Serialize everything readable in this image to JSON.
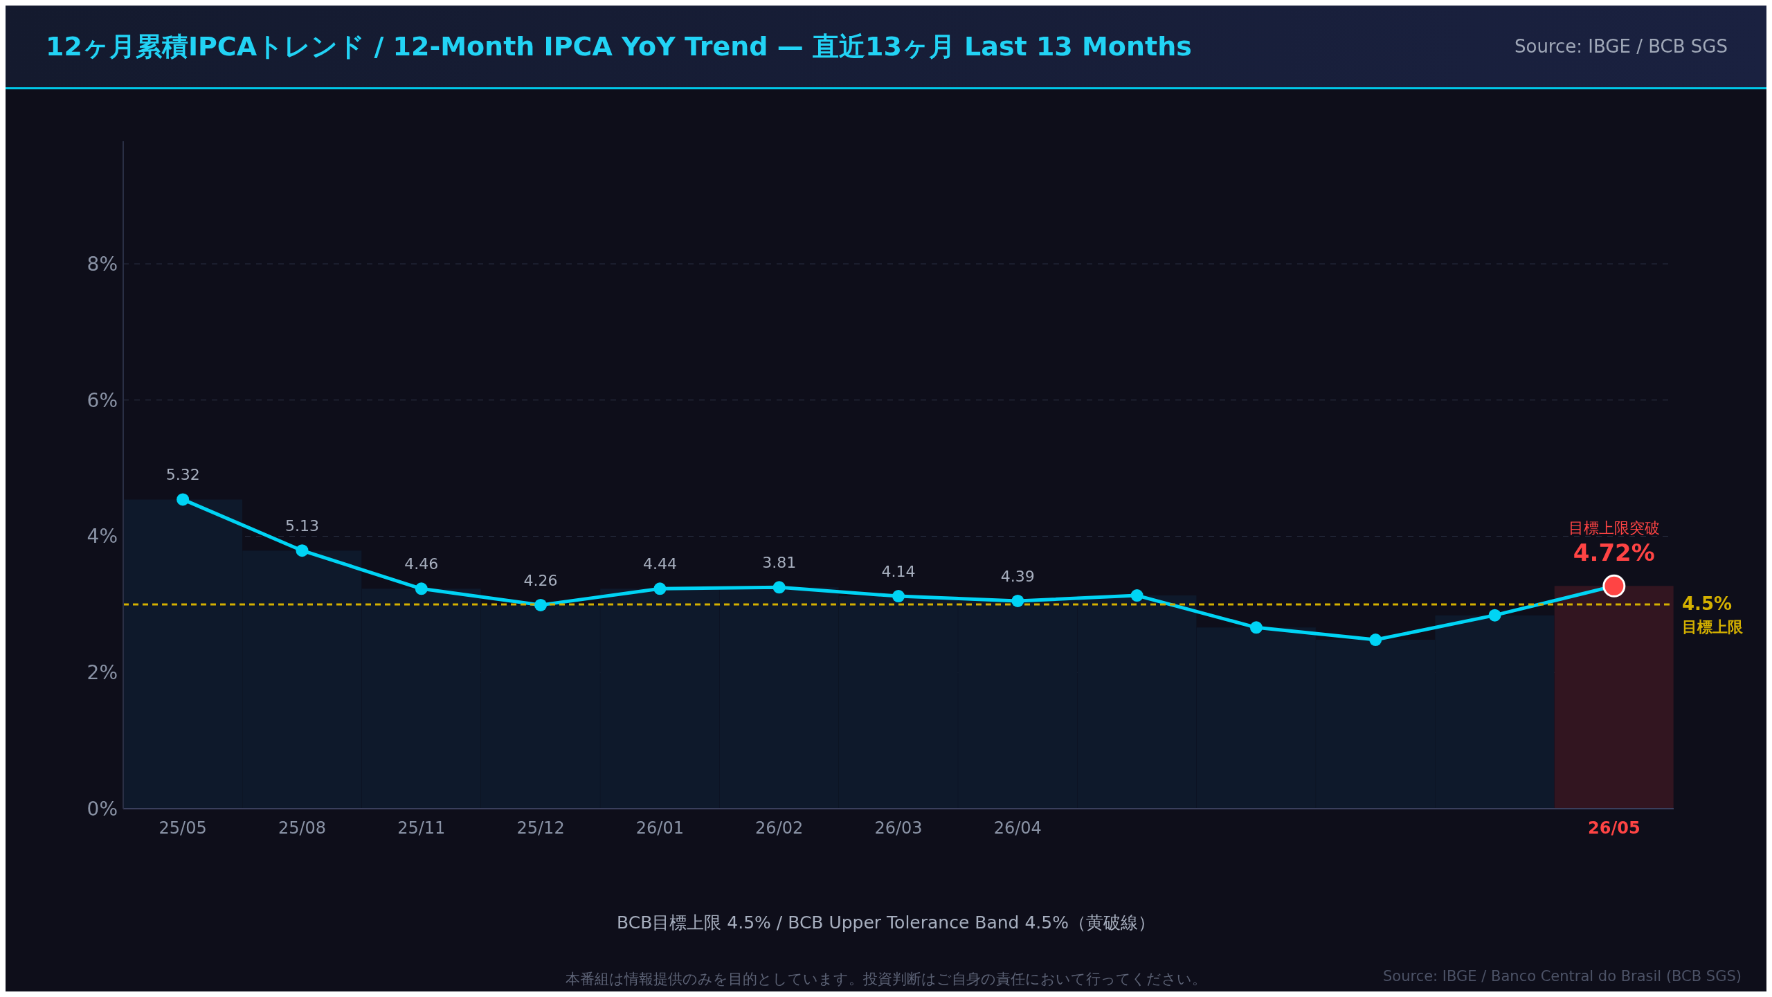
{
  "chart_data": {
    "type": "line",
    "title": "12ヶ月累積IPCAトレンド / 12-Month IPCA YoY Trend — 直近13ヶ月 Last 13 Months",
    "categories": [
      "25/05",
      "25/08",
      "25/11",
      "25/12",
      "26/01",
      "26/02",
      "26/03",
      "26/04",
      null,
      null,
      null,
      null,
      "26/05"
    ],
    "series": [
      {
        "type": "bar",
        "colors": [
          "#0e192b",
          "#0e192b",
          "#0e192b",
          "#0e192b",
          "#0e192b",
          "#0e192b",
          "#0e192b",
          "#0e192b",
          "#0e192b",
          "#0e192b",
          "#0e192b",
          "#0e192b",
          "#321520"
        ],
        "values": [
          4.54,
          3.79,
          3.23,
          2.99,
          3.23,
          3.25,
          3.12,
          3.05,
          3.13,
          2.66,
          2.48,
          2.84,
          3.27
        ]
      },
      {
        "color": "#00d4f5",
        "colors": [
          "#00d4f5",
          "#00d4f5",
          "#00d4f5",
          "#00d4f5",
          "#00d4f5",
          "#00d4f5",
          "#00d4f5",
          "#00d4f5",
          "#00d4f5",
          "#00d4f5",
          "#00d4f5",
          "#00d4f5",
          "#ff4444"
        ],
        "values": [
          4.54,
          3.79,
          3.23,
          2.99,
          3.23,
          3.25,
          3.12,
          3.05,
          3.13,
          2.66,
          2.48,
          2.84,
          3.27
        ]
      }
    ],
    "ylim": [
      0,
      9.8
    ],
    "yticks": [
      {
        "value": 0,
        "label": "0%"
      },
      {
        "value": 2,
        "label": "2%"
      },
      {
        "value": 4,
        "label": "4%"
      },
      {
        "value": 6,
        "label": "6%"
      },
      {
        "value": 8,
        "label": "8%"
      }
    ],
    "grid": "y",
    "marker": "circle",
    "line_style": "solid",
    "legend": false,
    "ref_lines": [
      {
        "axis": "y",
        "value": 3,
        "label": "4.5% 目標上限",
        "color": "#d4b000",
        "line_style": "dashed"
      }
    ],
    "annotations": [
      "Source: IBGE / BCB SGS",
      "BCB目標上限 4.5% / BCB Upper Tolerance Band 4.5%（黄破線）",
      "本番組は情報提供のみを目的としています。投資判断はご自身の責任において行ってください。",
      "Source: IBGE / Banco Central do Brasil (BCB SGS)",
      "目標上限突破",
      "4.72%",
      {
        "text": "5.32",
        "x": "25/05",
        "y": 4.54
      },
      {
        "text": "5.13",
        "x": "25/08",
        "y": 3.79
      },
      {
        "text": "4.46",
        "x": "25/11",
        "y": 3.23
      },
      {
        "text": "4.26",
        "x": "25/12",
        "y": 2.99
      },
      {
        "text": "4.44",
        "x": "26/01",
        "y": 3.23
      },
      {
        "text": "3.81",
        "x": "26/02",
        "y": 3.25
      },
      {
        "text": "4.14",
        "x": "26/03",
        "y": 3.12
      },
      {
        "text": "4.39",
        "x": "26/04",
        "y": 3.05
      }
    ]
  }
}
